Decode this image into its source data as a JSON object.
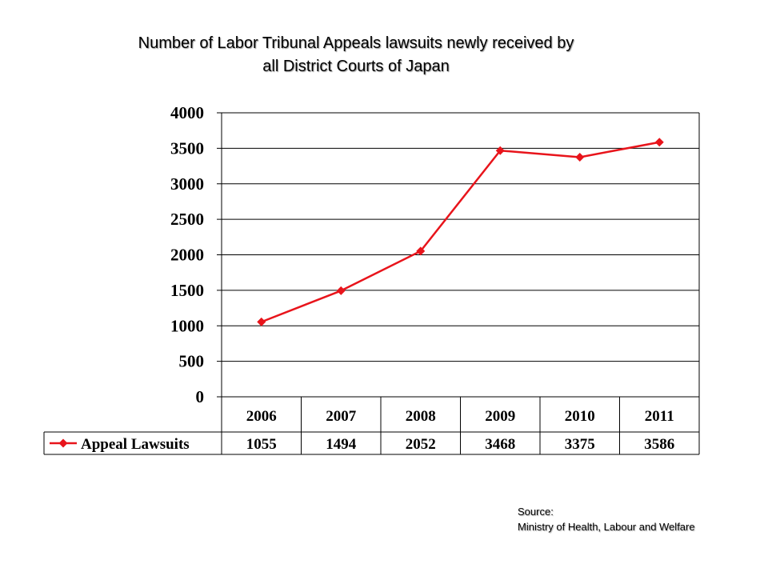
{
  "chart_data": {
    "type": "line",
    "title_lines": [
      "Number of Labor Tribunal Appeals lawsuits newly received by",
      "all District Courts of Japan"
    ],
    "categories": [
      "2006",
      "2007",
      "2008",
      "2009",
      "2010",
      "2011"
    ],
    "series": [
      {
        "name": "Appeal Lawsuits",
        "values": [
          1055,
          1494,
          2052,
          3468,
          3375,
          3586
        ],
        "color": "#e8141b",
        "marker": "diamond"
      }
    ],
    "yticks": [
      "4000",
      "3500",
      "3000",
      "2500",
      "2000",
      "1500",
      "1000",
      "500",
      "0"
    ],
    "ylim": [
      0,
      4000
    ],
    "ystep": 500,
    "grid": true,
    "legend": "data-table"
  },
  "source": {
    "label": "Source:",
    "text": "Ministry of Health, Labour and Welfare"
  }
}
